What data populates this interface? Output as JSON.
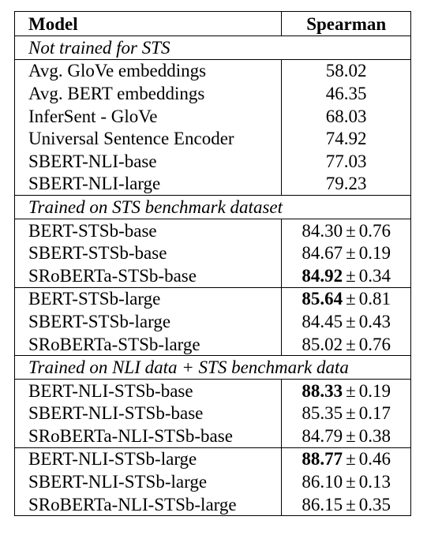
{
  "table": {
    "headers": {
      "model": "Model",
      "score": "Spearman"
    },
    "sections": [
      {
        "title": "Not trained for STS",
        "groups": [
          [
            {
              "model": "Avg. GloVe embeddings",
              "mean": "58.02",
              "std": "",
              "bold": false
            },
            {
              "model": "Avg. BERT embeddings",
              "mean": "46.35",
              "std": "",
              "bold": false
            },
            {
              "model": "InferSent - GloVe",
              "mean": "68.03",
              "std": "",
              "bold": false
            },
            {
              "model": "Universal Sentence Encoder",
              "mean": "74.92",
              "std": "",
              "bold": false
            },
            {
              "model": "SBERT-NLI-base",
              "mean": "77.03",
              "std": "",
              "bold": false
            },
            {
              "model": "SBERT-NLI-large",
              "mean": "79.23",
              "std": "",
              "bold": false
            }
          ]
        ]
      },
      {
        "title": "Trained on STS benchmark dataset",
        "groups": [
          [
            {
              "model": "BERT-STSb-base",
              "mean": "84.30",
              "std": "0.76",
              "bold": false
            },
            {
              "model": "SBERT-STSb-base",
              "mean": "84.67",
              "std": "0.19",
              "bold": false
            },
            {
              "model": "SRoBERTa-STSb-base",
              "mean": "84.92",
              "std": "0.34",
              "bold": true
            }
          ],
          [
            {
              "model": "BERT-STSb-large",
              "mean": "85.64",
              "std": "0.81",
              "bold": true
            },
            {
              "model": "SBERT-STSb-large",
              "mean": "84.45",
              "std": "0.43",
              "bold": false
            },
            {
              "model": "SRoBERTa-STSb-large",
              "mean": "85.02",
              "std": "0.76",
              "bold": false
            }
          ]
        ]
      },
      {
        "title": "Trained on NLI data + STS benchmark data",
        "groups": [
          [
            {
              "model": "BERT-NLI-STSb-base",
              "mean": "88.33",
              "std": "0.19",
              "bold": true
            },
            {
              "model": "SBERT-NLI-STSb-base",
              "mean": "85.35",
              "std": "0.17",
              "bold": false
            },
            {
              "model": "SRoBERTa-NLI-STSb-base",
              "mean": "84.79",
              "std": "0.38",
              "bold": false
            }
          ],
          [
            {
              "model": "BERT-NLI-STSb-large",
              "mean": "88.77",
              "std": "0.46",
              "bold": true
            },
            {
              "model": "SBERT-NLI-STSb-large",
              "mean": "86.10",
              "std": "0.13",
              "bold": false
            },
            {
              "model": "SRoBERTa-NLI-STSb-large",
              "mean": "86.15",
              "std": "0.35",
              "bold": false
            }
          ]
        ]
      }
    ]
  }
}
